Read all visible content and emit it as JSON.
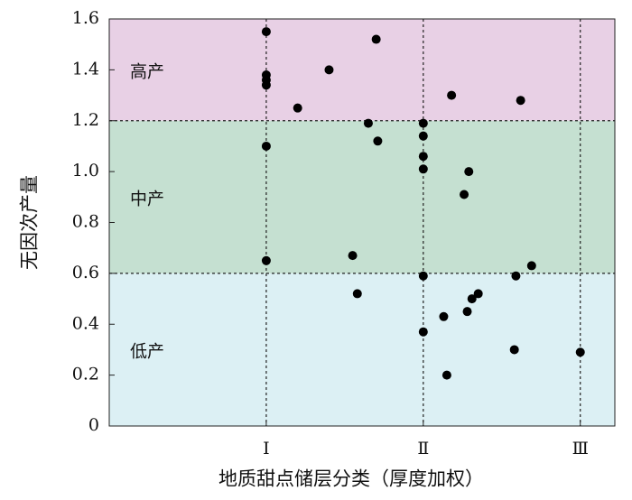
{
  "chart_data": {
    "type": "scatter",
    "xlabel": "地质甜点储层分类（厚度加权）",
    "ylabel": "无因次产量",
    "ylim": [
      0,
      1.6
    ],
    "y_ticks": [
      "0",
      "0.2",
      "0.4",
      "0.6",
      "0.8",
      "1.0",
      "1.2",
      "1.4",
      "1.6"
    ],
    "x_categories": [
      {
        "label": "Ⅰ",
        "x": 1
      },
      {
        "label": "Ⅱ",
        "x": 2
      },
      {
        "label": "Ⅲ",
        "x": 3
      }
    ],
    "xlim": [
      0,
      3.22
    ],
    "zones": [
      {
        "label": "低产",
        "from": 0,
        "to": 0.6,
        "color": "#dcf0f4"
      },
      {
        "label": "中产",
        "from": 0.6,
        "to": 1.2,
        "color": "#c5e0d1"
      },
      {
        "label": "高产",
        "from": 1.2,
        "to": 1.6,
        "color": "#e8d0e5"
      }
    ],
    "points": [
      {
        "x": 1.0,
        "y": 1.55
      },
      {
        "x": 1.0,
        "y": 1.38
      },
      {
        "x": 1.0,
        "y": 1.36
      },
      {
        "x": 1.0,
        "y": 1.34
      },
      {
        "x": 1.0,
        "y": 1.1
      },
      {
        "x": 1.0,
        "y": 0.65
      },
      {
        "x": 1.2,
        "y": 1.25
      },
      {
        "x": 1.4,
        "y": 1.4
      },
      {
        "x": 1.55,
        "y": 0.67
      },
      {
        "x": 1.58,
        "y": 0.52
      },
      {
        "x": 1.65,
        "y": 1.19
      },
      {
        "x": 1.7,
        "y": 1.52
      },
      {
        "x": 1.71,
        "y": 1.12
      },
      {
        "x": 2.0,
        "y": 1.19
      },
      {
        "x": 2.0,
        "y": 1.14
      },
      {
        "x": 2.0,
        "y": 1.06
      },
      {
        "x": 2.0,
        "y": 1.01
      },
      {
        "x": 2.0,
        "y": 0.59
      },
      {
        "x": 2.0,
        "y": 0.37
      },
      {
        "x": 2.13,
        "y": 0.43
      },
      {
        "x": 2.15,
        "y": 0.2
      },
      {
        "x": 2.18,
        "y": 1.3
      },
      {
        "x": 2.26,
        "y": 0.91
      },
      {
        "x": 2.28,
        "y": 0.45
      },
      {
        "x": 2.29,
        "y": 1.0
      },
      {
        "x": 2.31,
        "y": 0.5
      },
      {
        "x": 2.35,
        "y": 0.52
      },
      {
        "x": 2.58,
        "y": 0.3
      },
      {
        "x": 2.59,
        "y": 0.59
      },
      {
        "x": 2.62,
        "y": 1.28
      },
      {
        "x": 2.69,
        "y": 0.63
      },
      {
        "x": 3.0,
        "y": 0.29
      }
    ],
    "grid": false
  }
}
